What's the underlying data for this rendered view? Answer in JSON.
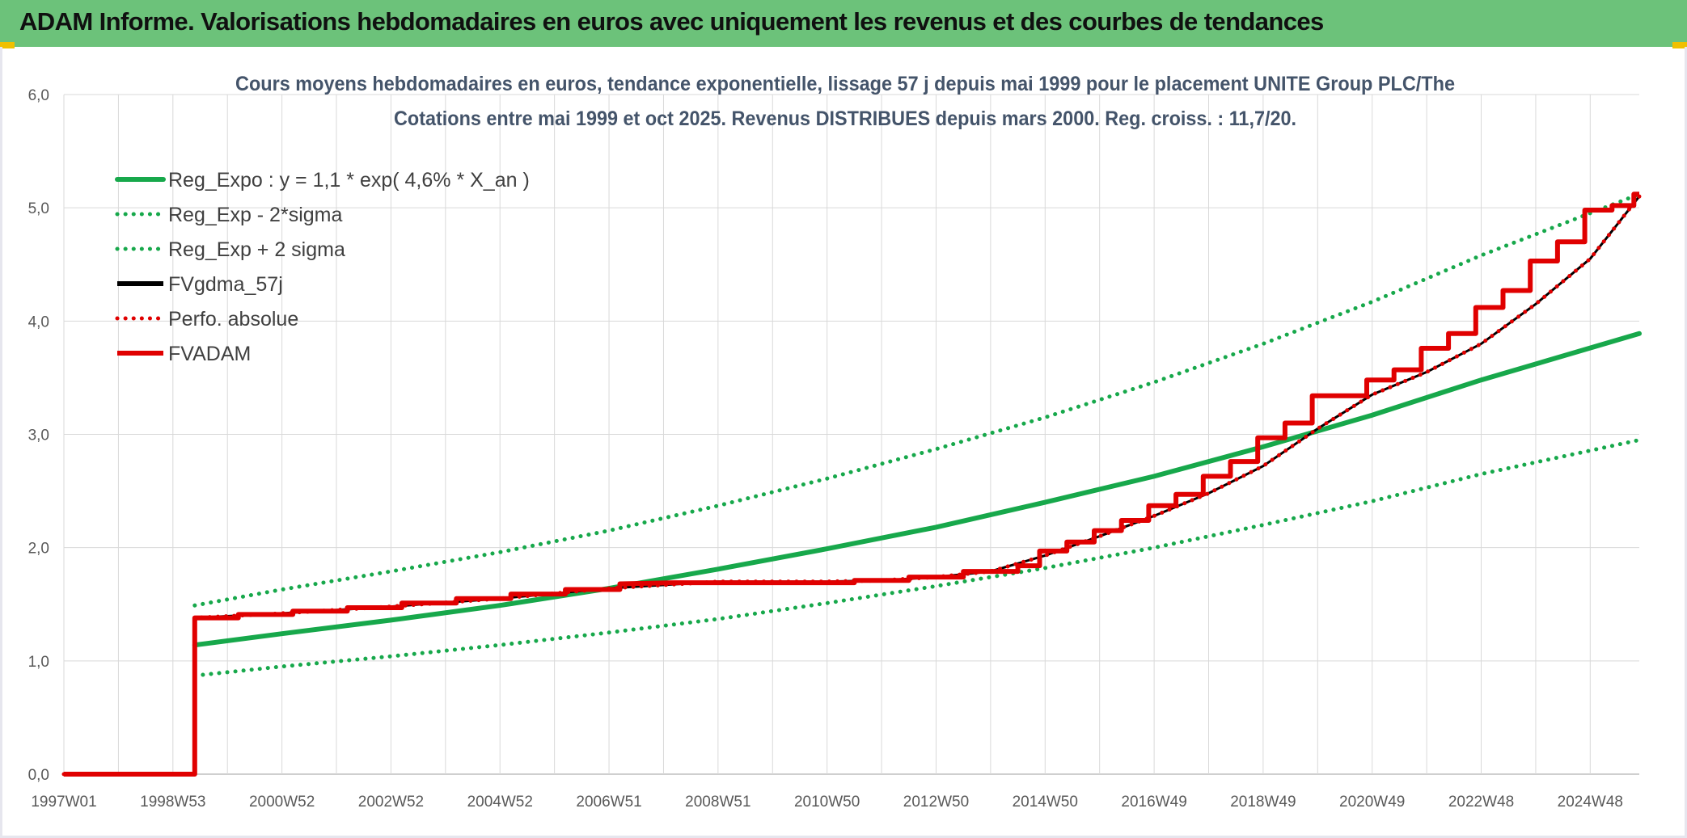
{
  "page": {
    "banner_title": "ADAM Informe. Valorisations hebdomadaires en euros avec uniquement les revenus et des courbes de tendances",
    "accent_color": "#6cc27a"
  },
  "chart_data": {
    "type": "line",
    "title": "Cours moyens hebdomadaires en euros, tendance exponentielle, lissage 57 j depuis mai 1999 pour le placement UNITE Group PLC/The",
    "subtitle": "Cotations entre mai 1999 et oct 2025. Revenus DISTRIBUES depuis mars 2000. Reg. croiss. : 11,7/20.",
    "xlabel": "",
    "ylabel": "",
    "ylim": [
      0,
      6
    ],
    "xlim": [
      1997.0,
      2025.9
    ],
    "grid": true,
    "legend_position": "top-left",
    "y_tick_labels": [
      "0,0",
      "1,0",
      "2,0",
      "3,0",
      "4,0",
      "5,0",
      "6,0"
    ],
    "x_tick_labels": [
      "1997W01",
      "1998W53",
      "2000W52",
      "2002W52",
      "2004W52",
      "2006W51",
      "2008W51",
      "2010W50",
      "2012W50",
      "2014W50",
      "2016W49",
      "2018W49",
      "2020W49",
      "2022W48",
      "2024W48"
    ],
    "series": [
      {
        "name": "Reg_Expo : y = 1,1 * exp( 4,6% *  X_an )",
        "color": "#17a84b",
        "style": "solid",
        "x": [
          1999.4,
          2001,
          2003,
          2005,
          2007,
          2009,
          2011,
          2013,
          2015,
          2017,
          2019,
          2021,
          2023,
          2025.9
        ],
        "y": [
          1.14,
          1.24,
          1.36,
          1.49,
          1.64,
          1.81,
          1.99,
          2.18,
          2.4,
          2.63,
          2.89,
          3.17,
          3.48,
          3.89
        ]
      },
      {
        "name": "Reg_Exp - 2*sigma",
        "color": "#17a84b",
        "style": "dotted",
        "x": [
          1999.4,
          2001,
          2003,
          2005,
          2007,
          2009,
          2011,
          2013,
          2015,
          2017,
          2019,
          2021,
          2023,
          2025.9
        ],
        "y": [
          0.87,
          0.95,
          1.04,
          1.14,
          1.25,
          1.37,
          1.51,
          1.66,
          1.82,
          2.0,
          2.2,
          2.41,
          2.65,
          2.95
        ]
      },
      {
        "name": "Reg_Exp + 2 sigma",
        "color": "#17a84b",
        "style": "dotted",
        "x": [
          1999.4,
          2001,
          2003,
          2005,
          2007,
          2009,
          2011,
          2013,
          2015,
          2017,
          2019,
          2021,
          2023,
          2025.9
        ],
        "y": [
          1.49,
          1.63,
          1.79,
          1.96,
          2.15,
          2.37,
          2.61,
          2.87,
          3.15,
          3.46,
          3.8,
          4.17,
          4.58,
          5.12
        ]
      },
      {
        "name": "FVgdma_57j",
        "color": "#000000",
        "style": "solid",
        "x": [
          1997.0,
          1999.4,
          1999.4,
          2001,
          2003,
          2005,
          2007,
          2009,
          2011,
          2012,
          2013,
          2014,
          2015,
          2016,
          2017,
          2018,
          2019,
          2020,
          2021,
          2022,
          2023,
          2024,
          2025,
          2025.9
        ],
        "y": [
          0.0,
          0.0,
          1.38,
          1.42,
          1.48,
          1.55,
          1.64,
          1.7,
          1.7,
          1.71,
          1.74,
          1.79,
          1.93,
          2.1,
          2.28,
          2.48,
          2.72,
          3.05,
          3.35,
          3.55,
          3.8,
          4.15,
          4.55,
          5.1
        ]
      },
      {
        "name": "Perfo. absolue",
        "color": "#e00000",
        "style": "dotted",
        "x": [
          1997.0,
          1999.4,
          1999.4,
          2001,
          2003,
          2005,
          2007,
          2009,
          2011,
          2012,
          2013,
          2014,
          2015,
          2016,
          2017,
          2018,
          2019,
          2020,
          2021,
          2022,
          2023,
          2024,
          2025,
          2025.9
        ],
        "y": [
          0.0,
          0.0,
          1.38,
          1.42,
          1.48,
          1.55,
          1.64,
          1.7,
          1.7,
          1.71,
          1.74,
          1.79,
          1.93,
          2.1,
          2.28,
          2.48,
          2.72,
          3.05,
          3.35,
          3.55,
          3.8,
          4.15,
          4.55,
          5.1
        ]
      },
      {
        "name": "FVADAM",
        "color": "#e00000",
        "style": "solid",
        "x": [
          1997.0,
          1999.4,
          1999.4,
          2000.2,
          2000.2,
          2001.2,
          2001.2,
          2002.2,
          2002.2,
          2003.2,
          2003.2,
          2004.2,
          2004.2,
          2005.2,
          2005.2,
          2006.2,
          2006.2,
          2007.2,
          2007.2,
          2008.2,
          2011.5,
          2011.5,
          2012.5,
          2012.5,
          2013.5,
          2013.5,
          2014.5,
          2014.5,
          2014.9,
          2014.9,
          2015.4,
          2015.4,
          2015.9,
          2015.9,
          2016.4,
          2016.4,
          2016.9,
          2016.9,
          2017.4,
          2017.4,
          2017.9,
          2017.9,
          2018.4,
          2018.4,
          2018.9,
          2018.9,
          2019.4,
          2019.4,
          2019.9,
          2019.9,
          2020.9,
          2020.9,
          2021.4,
          2021.4,
          2021.9,
          2021.9,
          2022.4,
          2022.4,
          2022.9,
          2022.9,
          2023.4,
          2023.4,
          2023.9,
          2023.9,
          2024.4,
          2024.4,
          2024.9,
          2024.9,
          2025.4,
          2025.4,
          2025.8,
          2025.8,
          2025.9
        ],
        "y": [
          0.0,
          0.0,
          1.38,
          1.38,
          1.41,
          1.41,
          1.44,
          1.44,
          1.47,
          1.47,
          1.51,
          1.51,
          1.55,
          1.55,
          1.59,
          1.59,
          1.63,
          1.63,
          1.68,
          1.69,
          1.69,
          1.71,
          1.71,
          1.74,
          1.74,
          1.79,
          1.79,
          1.84,
          1.84,
          1.97,
          1.97,
          2.05,
          2.05,
          2.15,
          2.15,
          2.24,
          2.24,
          2.37,
          2.37,
          2.47,
          2.47,
          2.63,
          2.63,
          2.76,
          2.76,
          2.97,
          2.97,
          3.1,
          3.1,
          3.34,
          3.34,
          3.48,
          3.48,
          3.57,
          3.57,
          3.76,
          3.76,
          3.89,
          3.89,
          4.12,
          4.12,
          4.27,
          4.27,
          4.53,
          4.53,
          4.7,
          4.7,
          4.98,
          4.98,
          5.02,
          5.02,
          5.12,
          5.12
        ]
      }
    ]
  }
}
